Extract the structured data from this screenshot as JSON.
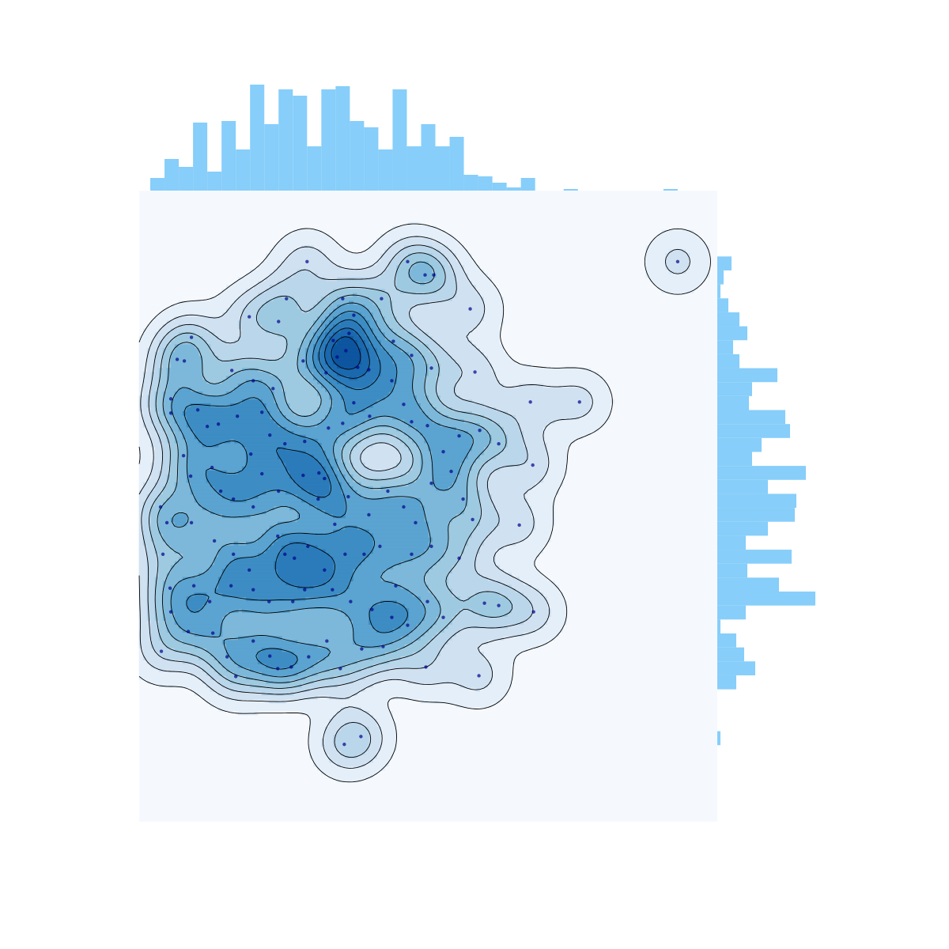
{
  "chart_data": {
    "type": "scatter",
    "x": [
      212,
      339,
      361,
      372,
      418,
      306,
      257,
      271,
      186,
      176,
      139,
      66,
      48,
      57,
      117,
      207,
      245,
      265,
      261,
      236,
      250,
      276,
      290,
      321,
      344,
      369,
      424,
      494,
      556,
      40,
      40,
      74,
      86,
      100,
      124,
      144,
      169,
      155,
      165,
      141,
      155,
      184,
      209,
      239,
      257,
      271,
      291,
      319,
      334,
      344,
      364,
      384,
      404,
      430,
      454,
      497,
      56,
      65,
      92,
      103,
      119,
      144,
      176,
      207,
      227,
      234,
      226,
      247,
      264,
      290,
      314,
      334,
      349,
      369,
      394,
      409,
      421,
      480,
      27,
      35,
      30,
      66,
      95,
      119,
      139,
      175,
      184,
      196,
      213,
      234,
      260,
      284,
      304,
      324,
      344,
      369,
      404,
      436,
      454,
      498,
      39,
      69,
      89,
      116,
      144,
      164,
      194,
      209,
      244,
      267,
      294,
      319,
      339,
      364,
      384,
      40,
      62,
      93,
      111,
      122,
      144,
      165,
      175,
      192,
      214,
      237,
      254,
      281,
      308,
      362,
      429,
      28,
      259,
      280,
      680
    ],
    "y": [
      710,
      710,
      693,
      693,
      650,
      663,
      663,
      642,
      663,
      634,
      640,
      614,
      586,
      584,
      572,
      584,
      610,
      619,
      597,
      569,
      589,
      576,
      573,
      609,
      591,
      575,
      570,
      532,
      532,
      536,
      518,
      522,
      501,
      504,
      514,
      559,
      549,
      519,
      490,
      466,
      441,
      479,
      482,
      499,
      505,
      531,
      514,
      559,
      529,
      507,
      502,
      469,
      489,
      496,
      479,
      452,
      464,
      438,
      449,
      419,
      409,
      399,
      419,
      439,
      442,
      435,
      409,
      377,
      412,
      389,
      419,
      399,
      379,
      429,
      444,
      409,
      383,
      376,
      399,
      379,
      339,
      379,
      356,
      339,
      319,
      362,
      339,
      334,
      349,
      319,
      339,
      339,
      349,
      299,
      339,
      349,
      334,
      277,
      274,
      266,
      296,
      299,
      279,
      299,
      294,
      279,
      279,
      294,
      294,
      279,
      269,
      259,
      249,
      279,
      259,
      266,
      241,
      239,
      209,
      184,
      229,
      210,
      194,
      196,
      209,
      229,
      194,
      219,
      222,
      196,
      185,
      216,
      98,
      108,
      710
    ],
    "color": "#00008b",
    "xlim": [
      0,
      730
    ],
    "ylim": [
      0,
      800
    ],
    "kde_levels": 10,
    "marginal_color": "#87cefa",
    "x_hist": {
      "bins": [
        14,
        32,
        50,
        68,
        86,
        104,
        122,
        140,
        158,
        176,
        194,
        212,
        230,
        248,
        266,
        284,
        302,
        320,
        338,
        356,
        374,
        392,
        410,
        428,
        446,
        464,
        482,
        500,
        518,
        536,
        554,
        572,
        590,
        608,
        626,
        644,
        662,
        680
      ],
      "counts": [
        8,
        20,
        15,
        43,
        12,
        44,
        26,
        67,
        42,
        64,
        60,
        28,
        64,
        66,
        44,
        40,
        26,
        64,
        28,
        42,
        28,
        34,
        10,
        9,
        5,
        2,
        8,
        0,
        0,
        1,
        0,
        0,
        0,
        0,
        0,
        0,
        1
      ]
    },
    "y_hist": {
      "bins": [
        97,
        114.7,
        132.4,
        150.1,
        167.8,
        185.5,
        203.2,
        220.9,
        238.6,
        256.3,
        274,
        291.7,
        309.4,
        327.1,
        344.8,
        362.5,
        380.2,
        397.9,
        415.6,
        433.3,
        451,
        468.7,
        486.4,
        504.1,
        521.8,
        539.5,
        557.2,
        574.9,
        592.6,
        610.3,
        628,
        645.7,
        663.4,
        681.1,
        698.8,
        716.5
      ],
      "counts": [
        2,
        0,
        0,
        0,
        12,
        24,
        17,
        12,
        2,
        18,
        62,
        39,
        19,
        47,
        18,
        32,
        49,
        50,
        32,
        56,
        22,
        28,
        46,
        43,
        20,
        22,
        38,
        14,
        10,
        19,
        14,
        7,
        2,
        4,
        9
      ]
    }
  }
}
